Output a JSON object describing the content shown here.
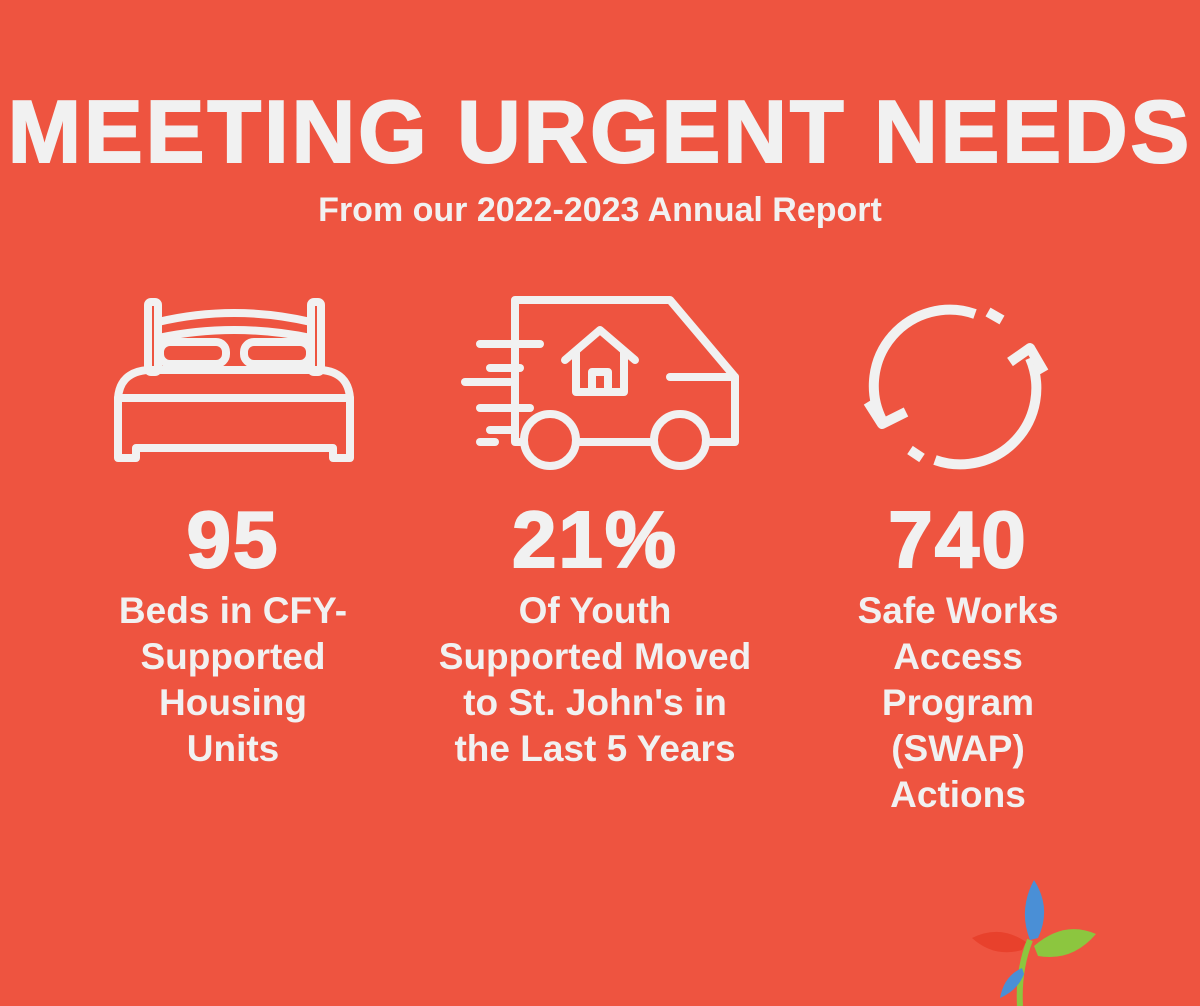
{
  "header": {
    "title": "MEETING URGENT NEEDS",
    "subtitle": "From our 2022-2023 Annual Report"
  },
  "stats": [
    {
      "icon": "bed-icon",
      "value": "95",
      "label": "Beds in CFY-\nSupported\nHousing\nUnits"
    },
    {
      "icon": "moving-van-icon",
      "value": "21%",
      "label": "Of Youth\nSupported Moved\nto St. John's in\nthe Last 5 Years"
    },
    {
      "icon": "refresh-cycle-icon",
      "value": "740",
      "label": "Safe Works\nAccess\nProgram\n(SWAP)\nActions"
    }
  ],
  "colors": {
    "background": "#ee5440",
    "foreground": "#f1f1f1",
    "logo_blue": "#4a8fd6",
    "logo_green": "#8cc63f",
    "logo_red": "#e8412c"
  },
  "logo": {
    "icon": "flower-logo-icon"
  }
}
